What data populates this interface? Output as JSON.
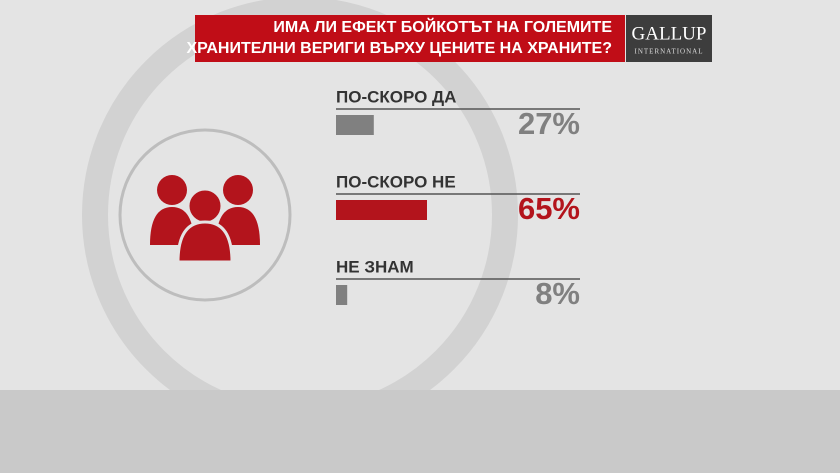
{
  "chart_data": {
    "type": "bar",
    "title": [
      "ИМА ЛИ ЕФЕКТ БОЙКОТЪТ НА ГОЛЕМИТЕ",
      "ХРАНИТЕЛНИ ВЕРИГИ ВЪРХУ ЦЕНИТЕ НА ХРАНИТЕ?"
    ],
    "logo": {
      "name": "GALLUP",
      "subtitle": "INTERNATIONAL"
    },
    "categories": [
      "ПО-СКОРО ДА",
      "ПО-СКОРО НЕ",
      "НЕ ЗНАМ"
    ],
    "values": [
      27,
      65,
      8
    ],
    "value_labels": [
      "27%",
      "65%",
      "8%"
    ],
    "colors": [
      "#808080",
      "#b3141c",
      "#808080"
    ]
  }
}
